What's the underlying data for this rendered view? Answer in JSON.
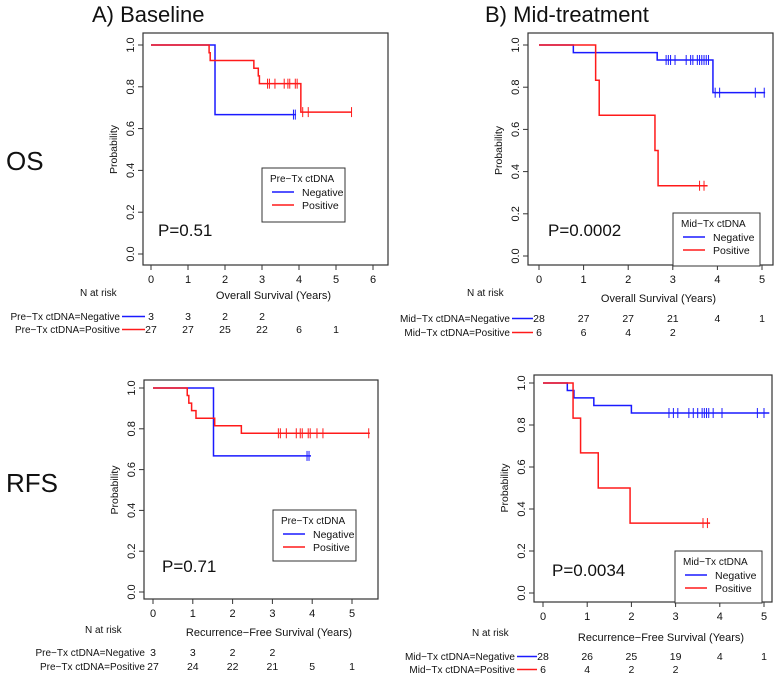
{
  "column_titles": [
    "A)   Baseline",
    "B)   Mid-treatment"
  ],
  "row_titles": [
    "OS",
    "RFS"
  ],
  "colors": {
    "negative": "#1a1aff",
    "positive": "#ff1a1a"
  },
  "chart_data": [
    {
      "type": "line",
      "subtype": "kaplan-meier",
      "panel": "A-OS",
      "xlabel": "Overall Survival (Years)",
      "ylabel": "Probability",
      "xlim": [
        0,
        6
      ],
      "ylim": [
        0,
        1
      ],
      "xticks": [
        "0",
        "1",
        "2",
        "3",
        "4",
        "5",
        "6"
      ],
      "yticks": [
        "0.0",
        "0.2",
        "0.4",
        "0.6",
        "0.8",
        "1.0"
      ],
      "p_value": "P=0.51",
      "legend": {
        "title": "Pre−Tx ctDNA",
        "placement": "center-right"
      },
      "series": [
        {
          "name": "Negative",
          "steps": [
            [
              0,
              1
            ],
            [
              1.73,
              0.667
            ]
          ],
          "end": 3.92,
          "censored": [
            3.85,
            3.9
          ]
        },
        {
          "name": "Positive",
          "steps": [
            [
              0,
              1
            ],
            [
              1.57,
              0.963
            ],
            [
              1.6,
              0.926
            ],
            [
              2.78,
              0.889
            ],
            [
              2.9,
              0.852
            ],
            [
              2.93,
              0.815
            ],
            [
              4.05,
              0.679
            ]
          ],
          "end": 5.42,
          "censored": [
            3.15,
            3.2,
            3.35,
            3.6,
            3.7,
            3.75,
            3.9,
            3.95,
            4.1,
            4.25,
            5.42
          ]
        }
      ],
      "risk_table": {
        "title": "N at risk",
        "rows": [
          {
            "label": "Pre−Tx ctDNA=Negative",
            "values": [
              "3",
              "3",
              "2",
              "2"
            ]
          },
          {
            "label": "Pre−Tx ctDNA=Positive",
            "values": [
              "27",
              "27",
              "25",
              "22",
              "6",
              "1"
            ]
          }
        ]
      }
    },
    {
      "type": "line",
      "subtype": "kaplan-meier",
      "panel": "B-OS",
      "xlabel": "Overall Survival (Years)",
      "ylabel": "Probability",
      "xlim": [
        0,
        5
      ],
      "ylim": [
        0,
        1
      ],
      "xticks": [
        "0",
        "1",
        "2",
        "3",
        "4",
        "5"
      ],
      "yticks": [
        "0.0",
        "0.2",
        "0.4",
        "0.6",
        "0.8",
        "1.0"
      ],
      "p_value": "P=0.0002",
      "legend": {
        "title": "Mid−Tx ctDNA",
        "placement": "bottom-right"
      },
      "series": [
        {
          "name": "Negative",
          "steps": [
            [
              0,
              1
            ],
            [
              0.77,
              0.964
            ],
            [
              2.65,
              0.929
            ],
            [
              3.9,
              0.774
            ]
          ],
          "end": 5.07,
          "censored": [
            2.85,
            2.9,
            2.95,
            3.05,
            3.3,
            3.4,
            3.45,
            3.55,
            3.6,
            3.65,
            3.7,
            3.75,
            3.8,
            3.95,
            4.05,
            4.85,
            5.05
          ]
        },
        {
          "name": "Positive",
          "steps": [
            [
              0,
              1
            ],
            [
              1.27,
              0.833
            ],
            [
              1.35,
              0.667
            ],
            [
              2.6,
              0.5
            ],
            [
              2.67,
              0.333
            ]
          ],
          "end": 3.78,
          "censored": [
            3.6,
            3.7
          ]
        }
      ],
      "risk_table": {
        "title": "N at risk",
        "rows": [
          {
            "label": "Mid−Tx ctDNA=Negative",
            "values": [
              "28",
              "27",
              "27",
              "21",
              "4",
              "1"
            ]
          },
          {
            "label": "Mid−Tx ctDNA=Positive",
            "values": [
              "6",
              "6",
              "4",
              "2"
            ]
          }
        ]
      }
    },
    {
      "type": "line",
      "subtype": "kaplan-meier",
      "panel": "A-RFS",
      "xlabel": "Recurrence−Free Survival (Years)",
      "ylabel": "Probability",
      "xlim": [
        0,
        5
      ],
      "ylim": [
        0,
        1
      ],
      "xticks": [
        "0",
        "1",
        "2",
        "3",
        "4",
        "5"
      ],
      "yticks": [
        "0.0",
        "0.2",
        "0.4",
        "0.6",
        "0.8",
        "1.0"
      ],
      "p_value": "P=0.71",
      "legend": {
        "title": "Pre−Tx ctDNA",
        "placement": "center-right"
      },
      "series": [
        {
          "name": "Negative",
          "steps": [
            [
              0,
              1
            ],
            [
              1.52,
              0.667
            ]
          ],
          "end": 3.97,
          "censored": [
            3.87,
            3.92
          ]
        },
        {
          "name": "Positive",
          "steps": [
            [
              0,
              1
            ],
            [
              0.86,
              0.963
            ],
            [
              0.9,
              0.926
            ],
            [
              0.97,
              0.889
            ],
            [
              1.08,
              0.852
            ],
            [
              1.55,
              0.815
            ],
            [
              2.22,
              0.778
            ]
          ],
          "end": 5.45,
          "censored": [
            3.15,
            3.2,
            3.35,
            3.6,
            3.7,
            3.75,
            3.9,
            3.95,
            4.12,
            4.27,
            5.42
          ]
        }
      ],
      "risk_table": {
        "title": "N at risk",
        "rows": [
          {
            "label": "Pre−Tx ctDNA=Negative",
            "values": [
              "3",
              "3",
              "2",
              "2"
            ]
          },
          {
            "label": "Pre−Tx ctDNA=Positive",
            "values": [
              "27",
              "24",
              "22",
              "21",
              "5",
              "1"
            ]
          }
        ]
      }
    },
    {
      "type": "line",
      "subtype": "kaplan-meier",
      "panel": "B-RFS",
      "xlabel": "Recurrence−Free Survival (Years)",
      "ylabel": "Probability",
      "xlim": [
        0,
        5
      ],
      "ylim": [
        0,
        1
      ],
      "xticks": [
        "0",
        "1",
        "2",
        "3",
        "4",
        "5"
      ],
      "yticks": [
        "0.0",
        "0.2",
        "0.4",
        "0.6",
        "0.8",
        "1.0"
      ],
      "p_value": "P=0.0034",
      "legend": {
        "title": "Mid−Tx ctDNA",
        "placement": "bottom-right"
      },
      "series": [
        {
          "name": "Negative",
          "steps": [
            [
              0,
              1
            ],
            [
              0.55,
              0.964
            ],
            [
              0.7,
              0.929
            ],
            [
              1.15,
              0.893
            ],
            [
              2.0,
              0.857
            ]
          ],
          "end": 5.12,
          "censored": [
            2.85,
            2.95,
            3.05,
            3.3,
            3.4,
            3.5,
            3.6,
            3.65,
            3.7,
            3.75,
            3.85,
            4.05,
            4.85,
            5.0
          ]
        },
        {
          "name": "Positive",
          "steps": [
            [
              0,
              1
            ],
            [
              0.68,
              0.833
            ],
            [
              0.85,
              0.667
            ],
            [
              1.25,
              0.5
            ],
            [
              1.97,
              0.333
            ]
          ],
          "end": 3.78,
          "censored": [
            3.62,
            3.72
          ]
        }
      ],
      "risk_table": {
        "title": "N at risk",
        "rows": [
          {
            "label": "Mid−Tx ctDNA=Negative",
            "values": [
              "28",
              "26",
              "25",
              "19",
              "4",
              "1"
            ]
          },
          {
            "label": "Mid−Tx ctDNA=Positive",
            "values": [
              "6",
              "4",
              "2",
              "2"
            ]
          }
        ]
      }
    }
  ]
}
